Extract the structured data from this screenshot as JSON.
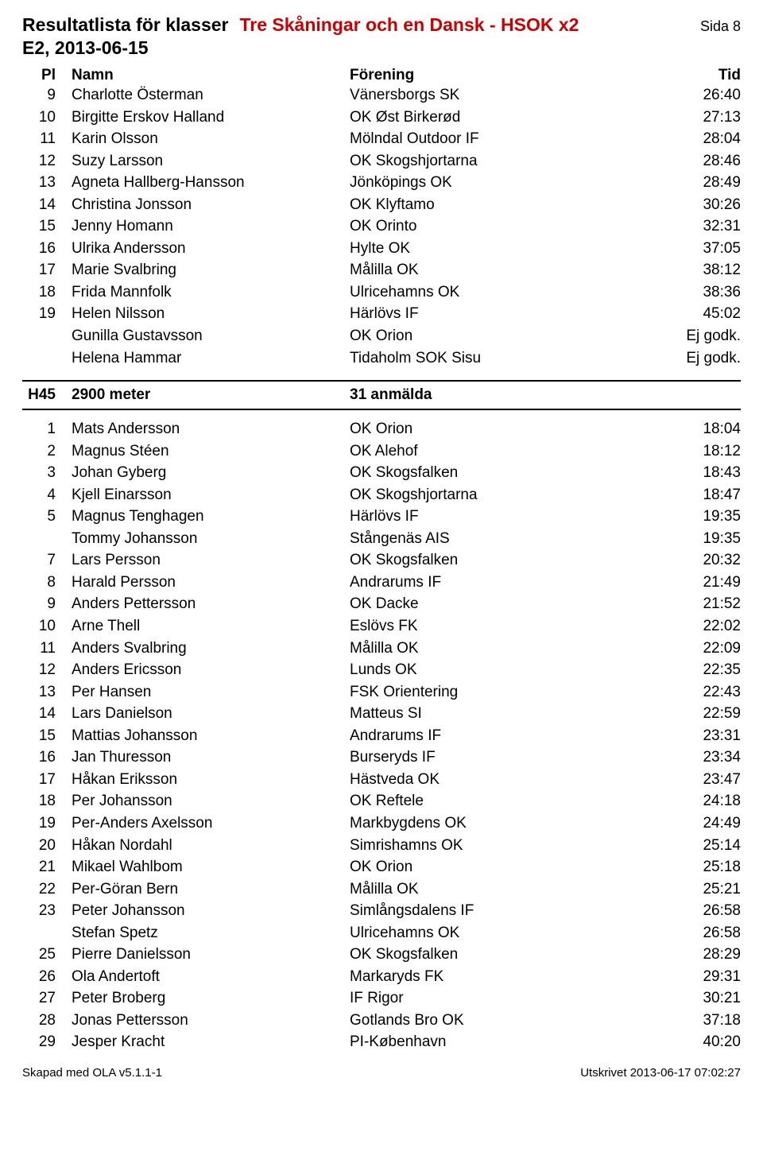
{
  "header": {
    "title_left": "Resultatlista för klasser",
    "title_right": "Tre Skåningar och en Dansk - HSOK x2",
    "page_label": "Sida 8",
    "subtitle": "E2, 2013-06-15",
    "col_pl": "Pl",
    "col_name": "Namn",
    "col_club": "Förening",
    "col_time": "Tid"
  },
  "section1": {
    "rows": [
      {
        "pl": "9",
        "name": "Charlotte Österman",
        "club": "Vänersborgs SK",
        "time": "26:40"
      },
      {
        "pl": "10",
        "name": "Birgitte Erskov Halland",
        "club": "OK Øst Birkerød",
        "time": "27:13"
      },
      {
        "pl": "11",
        "name": "Karin Olsson",
        "club": "Mölndal Outdoor IF",
        "time": "28:04"
      },
      {
        "pl": "12",
        "name": "Suzy Larsson",
        "club": "OK Skogshjortarna",
        "time": "28:46"
      },
      {
        "pl": "13",
        "name": "Agneta Hallberg-Hansson",
        "club": "Jönköpings OK",
        "time": "28:49"
      },
      {
        "pl": "14",
        "name": "Christina Jonsson",
        "club": "OK Klyftamo",
        "time": "30:26"
      },
      {
        "pl": "15",
        "name": "Jenny Homann",
        "club": "OK Orinto",
        "time": "32:31"
      },
      {
        "pl": "16",
        "name": "Ulrika Andersson",
        "club": "Hylte OK",
        "time": "37:05"
      },
      {
        "pl": "17",
        "name": "Marie Svalbring",
        "club": "Målilla OK",
        "time": "38:12"
      },
      {
        "pl": "18",
        "name": "Frida Mannfolk",
        "club": "Ulricehamns OK",
        "time": "38:36"
      },
      {
        "pl": "19",
        "name": "Helen Nilsson",
        "club": "Härlövs IF",
        "time": "45:02"
      },
      {
        "pl": "",
        "name": "Gunilla Gustavsson",
        "club": "OK Orion",
        "time": "Ej godk."
      },
      {
        "pl": "",
        "name": "Helena Hammar",
        "club": "Tidaholm SOK Sisu",
        "time": "Ej godk."
      }
    ]
  },
  "class": {
    "code": "H45",
    "dist": "2900 meter",
    "entries": "31 anmälda"
  },
  "section2": {
    "rows": [
      {
        "pl": "1",
        "name": "Mats Andersson",
        "club": "OK Orion",
        "time": "18:04"
      },
      {
        "pl": "2",
        "name": "Magnus Stéen",
        "club": "OK Alehof",
        "time": "18:12"
      },
      {
        "pl": "3",
        "name": "Johan Gyberg",
        "club": "OK Skogsfalken",
        "time": "18:43"
      },
      {
        "pl": "4",
        "name": "Kjell Einarsson",
        "club": "OK Skogshjortarna",
        "time": "18:47"
      },
      {
        "pl": "5",
        "name": "Magnus Tenghagen",
        "club": "Härlövs IF",
        "time": "19:35"
      },
      {
        "pl": "",
        "name": "Tommy Johansson",
        "club": "Stångenäs AIS",
        "time": "19:35"
      },
      {
        "pl": "7",
        "name": "Lars Persson",
        "club": "OK Skogsfalken",
        "time": "20:32"
      },
      {
        "pl": "8",
        "name": "Harald Persson",
        "club": "Andrarums IF",
        "time": "21:49"
      },
      {
        "pl": "9",
        "name": "Anders Pettersson",
        "club": "OK Dacke",
        "time": "21:52"
      },
      {
        "pl": "10",
        "name": "Arne Thell",
        "club": "Eslövs FK",
        "time": "22:02"
      },
      {
        "pl": "11",
        "name": "Anders Svalbring",
        "club": "Målilla OK",
        "time": "22:09"
      },
      {
        "pl": "12",
        "name": "Anders Ericsson",
        "club": "Lunds OK",
        "time": "22:35"
      },
      {
        "pl": "13",
        "name": "Per Hansen",
        "club": "FSK Orientering",
        "time": "22:43"
      },
      {
        "pl": "14",
        "name": "Lars Danielson",
        "club": "Matteus SI",
        "time": "22:59"
      },
      {
        "pl": "15",
        "name": "Mattias Johansson",
        "club": "Andrarums IF",
        "time": "23:31"
      },
      {
        "pl": "16",
        "name": "Jan Thuresson",
        "club": "Burseryds IF",
        "time": "23:34"
      },
      {
        "pl": "17",
        "name": "Håkan Eriksson",
        "club": "Hästveda OK",
        "time": "23:47"
      },
      {
        "pl": "18",
        "name": "Per Johansson",
        "club": "OK Reftele",
        "time": "24:18"
      },
      {
        "pl": "19",
        "name": "Per-Anders Axelsson",
        "club": "Markbygdens OK",
        "time": "24:49"
      },
      {
        "pl": "20",
        "name": "Håkan Nordahl",
        "club": "Simrishamns OK",
        "time": "25:14"
      },
      {
        "pl": "21",
        "name": "Mikael Wahlbom",
        "club": "OK Orion",
        "time": "25:18"
      },
      {
        "pl": "22",
        "name": "Per-Göran Bern",
        "club": "Målilla OK",
        "time": "25:21"
      },
      {
        "pl": "23",
        "name": "Peter Johansson",
        "club": "Simlångsdalens IF",
        "time": "26:58"
      },
      {
        "pl": "",
        "name": "Stefan Spetz",
        "club": "Ulricehamns OK",
        "time": "26:58"
      },
      {
        "pl": "25",
        "name": "Pierre Danielsson",
        "club": "OK Skogsfalken",
        "time": "28:29"
      },
      {
        "pl": "26",
        "name": "Ola Andertoft",
        "club": "Markaryds FK",
        "time": "29:31"
      },
      {
        "pl": "27",
        "name": "Peter Broberg",
        "club": "IF Rigor",
        "time": "30:21"
      },
      {
        "pl": "28",
        "name": "Jonas Pettersson",
        "club": "Gotlands Bro OK",
        "time": "37:18"
      },
      {
        "pl": "29",
        "name": "Jesper Kracht",
        "club": "PI-København",
        "time": "40:20"
      }
    ]
  },
  "footer": {
    "left": "Skapad med OLA v5.1.1-1",
    "right": "Utskrivet 2013-06-17 07:02:27"
  }
}
